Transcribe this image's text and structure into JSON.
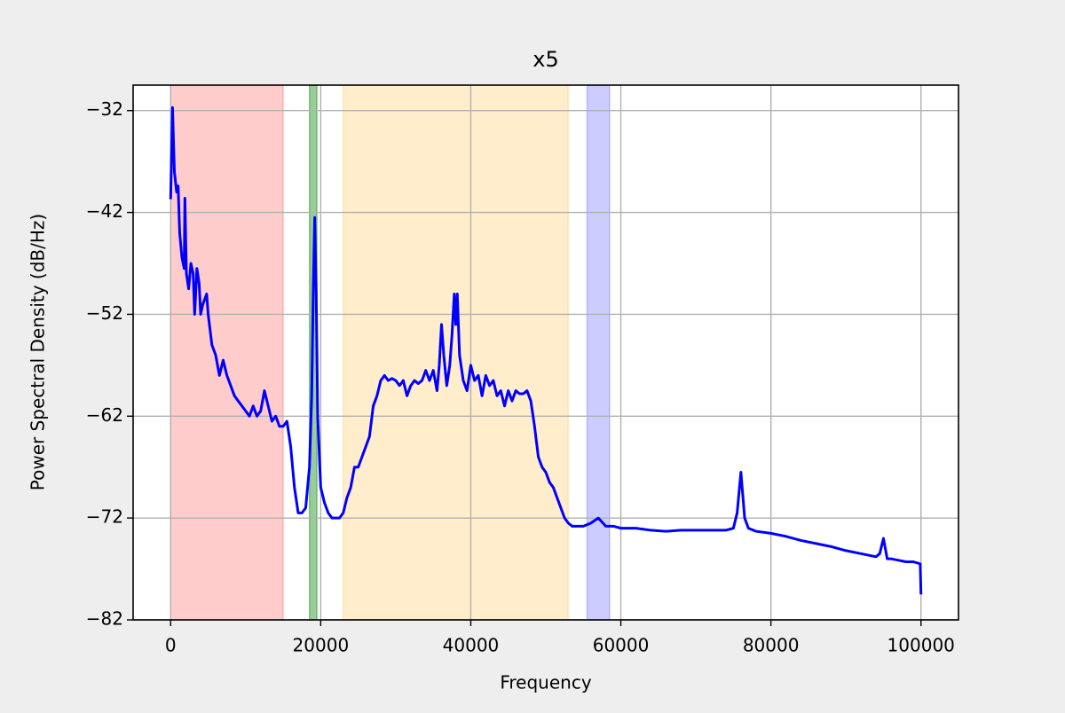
{
  "chart_data": {
    "type": "line",
    "title": "x5",
    "xlabel": "Frequency",
    "ylabel": "Power Spectral Density (dB/Hz)",
    "color": "#0000ff",
    "grid": true,
    "xlim": [
      -5000,
      105000
    ],
    "ylim": [
      -82,
      -29.5
    ],
    "xticks": [
      0,
      20000,
      40000,
      60000,
      80000,
      100000
    ],
    "yticks": [
      {
        "value": -32,
        "label": "−32"
      },
      {
        "value": -42,
        "label": "−42"
      },
      {
        "value": -52,
        "label": "−52"
      },
      {
        "value": -62,
        "label": "−62"
      },
      {
        "value": -72,
        "label": "−72"
      },
      {
        "value": -82,
        "label": "−82"
      }
    ],
    "spans": [
      {
        "start": 0,
        "end": 15000,
        "color": "#ff0000",
        "alpha": 0.2
      },
      {
        "start": 18500,
        "end": 19500,
        "color": "#008000",
        "alpha": 0.4
      },
      {
        "start": 23000,
        "end": 53000,
        "color": "#ffa500",
        "alpha": 0.2
      },
      {
        "start": 55500,
        "end": 58500,
        "color": "#0000ff",
        "alpha": 0.2
      }
    ],
    "x": [
      0,
      250,
      500,
      800,
      1000,
      1200,
      1500,
      1800,
      1900,
      2100,
      2400,
      2700,
      3000,
      3200,
      3500,
      3800,
      4000,
      4300,
      4800,
      5000,
      5500,
      6000,
      6500,
      7000,
      7500,
      8000,
      8500,
      9000,
      10000,
      10500,
      11000,
      11500,
      12000,
      12500,
      13000,
      13500,
      14000,
      14500,
      15000,
      15500,
      16000,
      16500,
      17000,
      17500,
      18000,
      18500,
      18800,
      19000,
      19200,
      19400,
      19600,
      20000,
      20500,
      21000,
      21500,
      22000,
      22500,
      23000,
      23500,
      24000,
      24500,
      25000,
      25500,
      26000,
      26500,
      27000,
      27500,
      28000,
      28500,
      29000,
      29500,
      30000,
      30500,
      31000,
      31500,
      32000,
      32500,
      33000,
      33500,
      34000,
      34500,
      35000,
      35500,
      35800,
      36100,
      36400,
      36800,
      37200,
      37500,
      37800,
      38000,
      38200,
      38500,
      39000,
      39500,
      40000,
      40500,
      41000,
      41500,
      42000,
      42500,
      43000,
      43500,
      44000,
      44500,
      45000,
      45500,
      46000,
      46500,
      47000,
      47500,
      48000,
      48500,
      49000,
      49500,
      50000,
      50500,
      51000,
      51500,
      52000,
      52500,
      53000,
      53500,
      54000,
      55000,
      56000,
      57000,
      58000,
      59000,
      60000,
      62000,
      64000,
      66000,
      68000,
      70000,
      72000,
      74000,
      75000,
      75500,
      76000,
      76500,
      77000,
      78000,
      80000,
      82000,
      84000,
      86000,
      88000,
      90000,
      92000,
      94000,
      94500,
      95000,
      95500,
      96000,
      98000,
      99000,
      99900,
      100000
    ],
    "values": [
      -40.7,
      -31.7,
      -38,
      -40,
      -39.4,
      -44,
      -46.4,
      -47.5,
      -40.6,
      -48,
      -49.5,
      -47,
      -48,
      -52,
      -47.5,
      -49,
      -52,
      -51,
      -50,
      -52,
      -55,
      -56,
      -58,
      -56.5,
      -58,
      -59,
      -60,
      -60.5,
      -61.5,
      -62,
      -61,
      -62,
      -61.5,
      -59.5,
      -61,
      -62.5,
      -62,
      -63,
      -63,
      -62.5,
      -65,
      -69,
      -71.5,
      -71.5,
      -71,
      -67,
      -60,
      -50,
      -42.5,
      -50,
      -62,
      -69,
      -70.5,
      -71.5,
      -72,
      -72,
      -72,
      -71.5,
      -70,
      -69,
      -67,
      -67,
      -66,
      -65,
      -64,
      -61,
      -60,
      -58.5,
      -58,
      -58.5,
      -58.3,
      -58.5,
      -59,
      -58.5,
      -60,
      -59,
      -58.5,
      -58.8,
      -58.5,
      -57.5,
      -58.5,
      -57.5,
      -59.5,
      -57,
      -53,
      -56,
      -59,
      -57,
      -54,
      -50,
      -53,
      -50,
      -56,
      -58.5,
      -59.5,
      -57,
      -58.5,
      -58,
      -60,
      -58,
      -59,
      -58.5,
      -60,
      -59.5,
      -61,
      -59.5,
      -60.5,
      -59.5,
      -59.8,
      -59.8,
      -59.5,
      -60.5,
      -63,
      -66,
      -67,
      -67.5,
      -68.5,
      -69,
      -70,
      -71,
      -72,
      -72.5,
      -72.8,
      -72.8,
      -72.8,
      -72.5,
      -72,
      -72.8,
      -72.8,
      -73,
      -73,
      -73.2,
      -73.3,
      -73.2,
      -73.2,
      -73.2,
      -73.2,
      -73,
      -71.5,
      -67.5,
      -72,
      -73,
      -73.3,
      -73.5,
      -73.8,
      -74.2,
      -74.5,
      -74.8,
      -75.2,
      -75.5,
      -75.8,
      -75.5,
      -74,
      -76,
      -76,
      -76.3,
      -76.3,
      -76.5,
      -79.5
    ]
  }
}
